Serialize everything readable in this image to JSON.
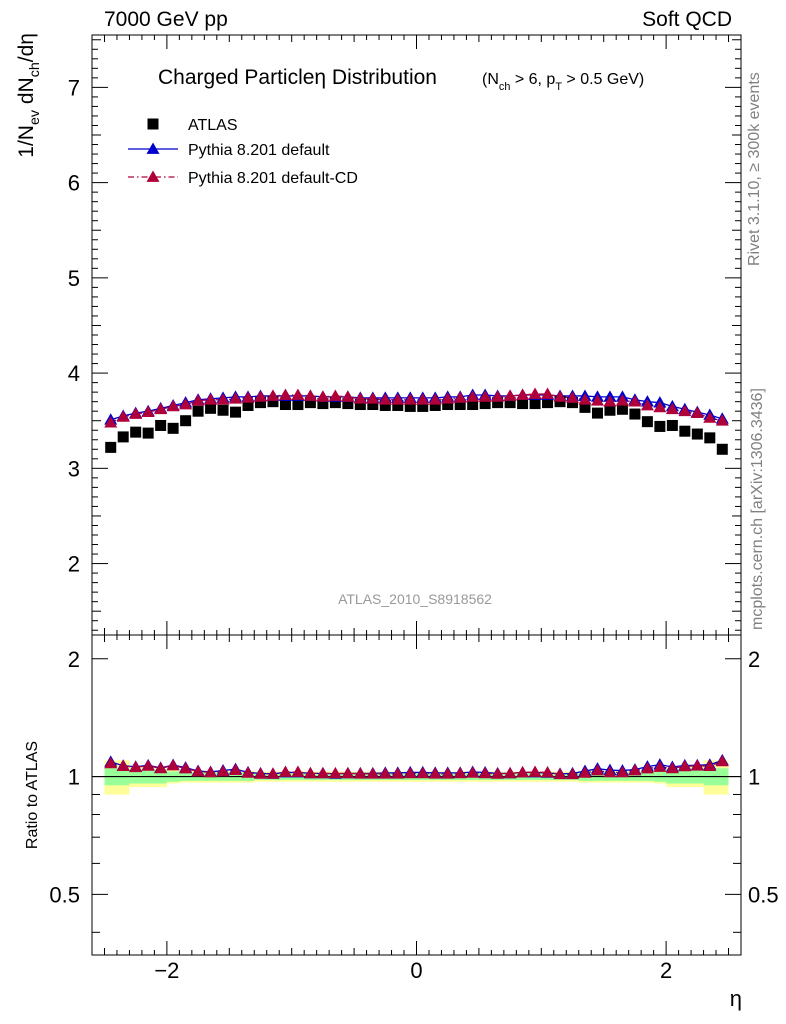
{
  "header": {
    "left": "7000 GeV pp",
    "right": "Soft QCD"
  },
  "side_labels": {
    "rivet": "Rivet 3.1.10, ≥ 300k events",
    "mcplots": "mcplots.cern.ch [arXiv:1306.3436]"
  },
  "colors": {
    "atlas": "#000000",
    "pythia_default": "#0000cc",
    "pythia_cd": "#b0003a",
    "band_inner": "#99ff99",
    "band_outer": "#ffff99",
    "watermark": "#999999"
  },
  "chart_data": {
    "type": "scatter",
    "title": "Charged Particleη Distribution",
    "title_suffix": "(N_ch > 6, p_T > 0.5 GeV)",
    "analysis_tag": "ATLAS_2010_S8918562",
    "xlabel": "η",
    "ylabel": "1/N_ev dN_ch/dη",
    "ratio_ylabel": "Ratio to ATLAS",
    "xlim": [
      -2.6,
      2.6
    ],
    "ylim": [
      1.25,
      7.55
    ],
    "ratio_ylim": [
      0.35,
      2.3
    ],
    "x_ticks": [
      -2,
      0,
      2
    ],
    "x_tick_labels": [
      "−2",
      "0",
      "2"
    ],
    "y_ticks": [
      2,
      3,
      4,
      5,
      6,
      7
    ],
    "ratio_ticks": [
      0.5,
      1,
      2
    ],
    "ratio_tick_labels": [
      "0.5",
      "1",
      "2"
    ],
    "legend_position": "top-left",
    "x": [
      -2.45,
      -2.35,
      -2.25,
      -2.15,
      -2.05,
      -1.95,
      -1.85,
      -1.75,
      -1.65,
      -1.55,
      -1.45,
      -1.35,
      -1.25,
      -1.15,
      -1.05,
      -0.95,
      -0.85,
      -0.75,
      -0.65,
      -0.55,
      -0.45,
      -0.35,
      -0.25,
      -0.15,
      -0.05,
      0.05,
      0.15,
      0.25,
      0.35,
      0.45,
      0.55,
      0.65,
      0.75,
      0.85,
      0.95,
      1.05,
      1.15,
      1.25,
      1.35,
      1.45,
      1.55,
      1.65,
      1.75,
      1.85,
      1.95,
      2.05,
      2.15,
      2.25,
      2.35,
      2.45
    ],
    "series": [
      {
        "name": "ATLAS",
        "style": "square",
        "values": [
          3.22,
          3.33,
          3.38,
          3.37,
          3.45,
          3.42,
          3.5,
          3.6,
          3.63,
          3.61,
          3.59,
          3.66,
          3.69,
          3.7,
          3.67,
          3.67,
          3.69,
          3.68,
          3.69,
          3.68,
          3.67,
          3.67,
          3.66,
          3.66,
          3.65,
          3.65,
          3.66,
          3.67,
          3.67,
          3.67,
          3.68,
          3.69,
          3.69,
          3.68,
          3.68,
          3.69,
          3.7,
          3.69,
          3.64,
          3.58,
          3.61,
          3.62,
          3.57,
          3.49,
          3.44,
          3.45,
          3.39,
          3.36,
          3.32,
          3.2
        ]
      },
      {
        "name": "Pythia 8.201 default",
        "style": "solid",
        "values": [
          3.51,
          3.55,
          3.58,
          3.6,
          3.63,
          3.66,
          3.69,
          3.72,
          3.73,
          3.74,
          3.75,
          3.75,
          3.76,
          3.76,
          3.76,
          3.76,
          3.76,
          3.75,
          3.75,
          3.75,
          3.74,
          3.74,
          3.74,
          3.74,
          3.74,
          3.74,
          3.74,
          3.75,
          3.75,
          3.77,
          3.77,
          3.76,
          3.76,
          3.77,
          3.77,
          3.77,
          3.76,
          3.76,
          3.76,
          3.75,
          3.75,
          3.75,
          3.72,
          3.7,
          3.69,
          3.65,
          3.62,
          3.59,
          3.56,
          3.52
        ]
      },
      {
        "name": "Pythia 8.201 default-CD",
        "style": "dashdot",
        "values": [
          3.48,
          3.54,
          3.57,
          3.59,
          3.62,
          3.65,
          3.67,
          3.71,
          3.72,
          3.72,
          3.73,
          3.74,
          3.75,
          3.76,
          3.77,
          3.77,
          3.76,
          3.75,
          3.76,
          3.75,
          3.73,
          3.73,
          3.72,
          3.72,
          3.72,
          3.72,
          3.72,
          3.73,
          3.74,
          3.75,
          3.75,
          3.75,
          3.76,
          3.77,
          3.78,
          3.78,
          3.75,
          3.74,
          3.72,
          3.71,
          3.7,
          3.71,
          3.7,
          3.66,
          3.64,
          3.62,
          3.6,
          3.58,
          3.53,
          3.5
        ]
      }
    ],
    "ratio_band": {
      "x_edges": [
        -2.5,
        -2.3,
        -2.0,
        -1.9,
        -1.3,
        -0.7,
        0.0,
        0.7,
        1.3,
        1.9,
        2.0,
        2.3,
        2.5
      ],
      "inner_half_width": [
        0.05,
        0.04,
        0.03,
        0.025,
        0.02,
        0.02,
        0.02,
        0.02,
        0.025,
        0.03,
        0.04,
        0.05
      ],
      "outer_half_width": [
        0.1,
        0.06,
        0.04,
        0.035,
        0.03,
        0.03,
        0.03,
        0.03,
        0.035,
        0.04,
        0.06,
        0.1
      ]
    }
  }
}
